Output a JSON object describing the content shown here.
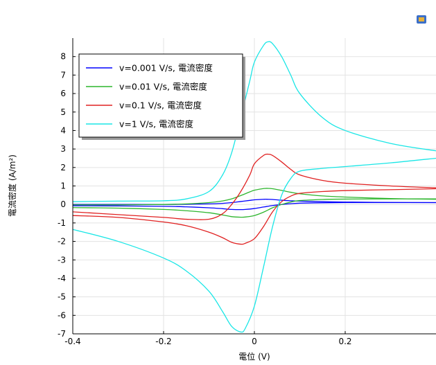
{
  "chart_data": {
    "type": "line",
    "xlabel": "電位 (V)",
    "ylabel": "電流密度 (A/m²)",
    "xlim": [
      -0.4,
      0.4
    ],
    "ylim": [
      -7,
      9
    ],
    "xticks": [
      -0.4,
      -0.2,
      0,
      0.2
    ],
    "xtick_labels": [
      "-0.4",
      "-0.2",
      "0",
      "0.2"
    ],
    "yticks": [
      -7,
      -6,
      -5,
      -4,
      -3,
      -2,
      -1,
      0,
      1,
      2,
      3,
      4,
      5,
      6,
      7,
      8
    ],
    "ytick_labels": [
      "-7",
      "-6",
      "-5",
      "-4",
      "-3",
      "-2",
      "-1",
      "0",
      "1",
      "2",
      "3",
      "4",
      "5",
      "6",
      "7",
      "8"
    ],
    "grid": true,
    "legend_position": "top-left",
    "series": [
      {
        "name": "v=0.001 V/s, 電流密度",
        "color": "#0000ff",
        "forward": {
          "x": [
            -0.4,
            -0.3,
            -0.2,
            -0.15,
            -0.1,
            -0.07,
            -0.05,
            -0.03,
            -0.01,
            0.0,
            0.02,
            0.03,
            0.04,
            0.06,
            0.08,
            0.1,
            0.15,
            0.2,
            0.3,
            0.4
          ],
          "y": [
            0.0,
            0.0,
            0.0,
            0.01,
            0.03,
            0.06,
            0.1,
            0.16,
            0.22,
            0.25,
            0.28,
            0.28,
            0.27,
            0.23,
            0.2,
            0.18,
            0.15,
            0.13,
            0.11,
            0.1
          ]
        },
        "reverse": {
          "x": [
            0.4,
            0.3,
            0.2,
            0.15,
            0.1,
            0.08,
            0.06,
            0.04,
            0.02,
            0.0,
            -0.02,
            -0.03,
            -0.05,
            -0.07,
            -0.1,
            -0.15,
            -0.2,
            -0.3,
            -0.4
          ],
          "y": [
            0.1,
            0.1,
            0.1,
            0.09,
            0.07,
            0.04,
            0.0,
            -0.06,
            -0.14,
            -0.22,
            -0.27,
            -0.28,
            -0.27,
            -0.23,
            -0.18,
            -0.13,
            -0.1,
            -0.08,
            -0.07
          ]
        }
      },
      {
        "name": "v=0.01 V/s, 電流密度",
        "color": "#2db52d",
        "forward": {
          "x": [
            -0.4,
            -0.3,
            -0.2,
            -0.15,
            -0.1,
            -0.07,
            -0.05,
            -0.03,
            -0.01,
            0.0,
            0.02,
            0.03,
            0.04,
            0.06,
            0.08,
            0.1,
            0.15,
            0.2,
            0.3,
            0.4
          ],
          "y": [
            -0.02,
            -0.02,
            0.0,
            0.03,
            0.1,
            0.19,
            0.3,
            0.48,
            0.68,
            0.77,
            0.86,
            0.87,
            0.85,
            0.76,
            0.66,
            0.58,
            0.46,
            0.4,
            0.32,
            0.28
          ]
        },
        "reverse": {
          "x": [
            0.4,
            0.3,
            0.2,
            0.15,
            0.1,
            0.08,
            0.06,
            0.04,
            0.02,
            0.0,
            -0.02,
            -0.03,
            -0.05,
            -0.07,
            -0.1,
            -0.15,
            -0.2,
            -0.3,
            -0.4
          ],
          "y": [
            0.3,
            0.3,
            0.29,
            0.27,
            0.21,
            0.13,
            0.0,
            -0.18,
            -0.42,
            -0.6,
            -0.68,
            -0.69,
            -0.66,
            -0.57,
            -0.45,
            -0.34,
            -0.27,
            -0.2,
            -0.17
          ]
        }
      },
      {
        "name": "v=0.1 V/s, 電流密度",
        "color": "#e02020",
        "forward": {
          "x": [
            -0.4,
            -0.3,
            -0.2,
            -0.15,
            -0.1,
            -0.07,
            -0.05,
            -0.03,
            -0.01,
            0.0,
            0.02,
            0.03,
            0.04,
            0.06,
            0.08,
            0.1,
            0.15,
            0.2,
            0.3,
            0.4
          ],
          "y": [
            -0.4,
            -0.55,
            -0.7,
            -0.8,
            -0.8,
            -0.5,
            0.0,
            0.7,
            1.6,
            2.2,
            2.65,
            2.72,
            2.65,
            2.3,
            1.9,
            1.6,
            1.3,
            1.15,
            1.0,
            0.9
          ]
        },
        "reverse": {
          "x": [
            0.4,
            0.3,
            0.2,
            0.15,
            0.1,
            0.08,
            0.06,
            0.04,
            0.02,
            0.0,
            -0.02,
            -0.03,
            -0.05,
            -0.07,
            -0.1,
            -0.15,
            -0.2,
            -0.3,
            -0.4
          ],
          "y": [
            0.85,
            0.8,
            0.75,
            0.7,
            0.6,
            0.45,
            0.15,
            -0.4,
            -1.2,
            -1.85,
            -2.1,
            -2.15,
            -2.05,
            -1.8,
            -1.5,
            -1.15,
            -0.95,
            -0.7,
            -0.6
          ]
        }
      },
      {
        "name": "v=1 V/s, 電流密度",
        "color": "#19e6e6",
        "forward": {
          "x": [
            -0.4,
            -0.3,
            -0.2,
            -0.15,
            -0.1,
            -0.07,
            -0.05,
            -0.03,
            -0.01,
            0.0,
            0.02,
            0.03,
            0.04,
            0.06,
            0.08,
            0.1,
            0.15,
            0.2,
            0.3,
            0.4
          ],
          "y": [
            0.15,
            0.18,
            0.2,
            0.3,
            0.7,
            1.6,
            2.8,
            4.7,
            6.7,
            7.7,
            8.6,
            8.8,
            8.7,
            8.0,
            7.0,
            6.0,
            4.7,
            4.0,
            3.3,
            2.9
          ]
        },
        "reverse": {
          "x": [
            0.4,
            0.3,
            0.2,
            0.15,
            0.1,
            0.08,
            0.06,
            0.04,
            0.02,
            0.0,
            -0.02,
            -0.03,
            -0.05,
            -0.07,
            -0.1,
            -0.15,
            -0.2,
            -0.3,
            -0.4
          ],
          "y": [
            2.5,
            2.25,
            2.05,
            1.95,
            1.8,
            1.4,
            0.5,
            -1.2,
            -3.4,
            -5.5,
            -6.7,
            -6.9,
            -6.6,
            -5.8,
            -4.7,
            -3.6,
            -2.9,
            -2.0,
            -1.35
          ]
        }
      }
    ]
  }
}
